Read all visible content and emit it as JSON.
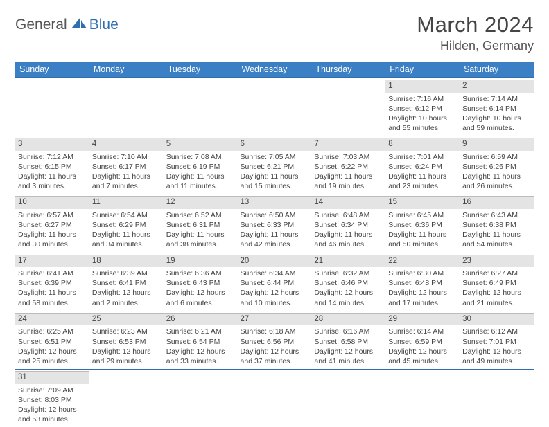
{
  "logo": {
    "part1": "General",
    "part2": "Blue"
  },
  "title": "March 2024",
  "location": "Hilden, Germany",
  "colors": {
    "header_bg": "#3b7fc4",
    "header_border": "#2f6fb0",
    "daynum_bg": "#e4e4e4",
    "text": "#444444",
    "accent": "#2f6fb0"
  },
  "weekdays": [
    "Sunday",
    "Monday",
    "Tuesday",
    "Wednesday",
    "Thursday",
    "Friday",
    "Saturday"
  ],
  "weeks": [
    [
      null,
      null,
      null,
      null,
      null,
      {
        "n": "1",
        "sr": "Sunrise: 7:16 AM",
        "ss": "Sunset: 6:12 PM",
        "d1": "Daylight: 10 hours",
        "d2": "and 55 minutes."
      },
      {
        "n": "2",
        "sr": "Sunrise: 7:14 AM",
        "ss": "Sunset: 6:14 PM",
        "d1": "Daylight: 10 hours",
        "d2": "and 59 minutes."
      }
    ],
    [
      {
        "n": "3",
        "sr": "Sunrise: 7:12 AM",
        "ss": "Sunset: 6:15 PM",
        "d1": "Daylight: 11 hours",
        "d2": "and 3 minutes."
      },
      {
        "n": "4",
        "sr": "Sunrise: 7:10 AM",
        "ss": "Sunset: 6:17 PM",
        "d1": "Daylight: 11 hours",
        "d2": "and 7 minutes."
      },
      {
        "n": "5",
        "sr": "Sunrise: 7:08 AM",
        "ss": "Sunset: 6:19 PM",
        "d1": "Daylight: 11 hours",
        "d2": "and 11 minutes."
      },
      {
        "n": "6",
        "sr": "Sunrise: 7:05 AM",
        "ss": "Sunset: 6:21 PM",
        "d1": "Daylight: 11 hours",
        "d2": "and 15 minutes."
      },
      {
        "n": "7",
        "sr": "Sunrise: 7:03 AM",
        "ss": "Sunset: 6:22 PM",
        "d1": "Daylight: 11 hours",
        "d2": "and 19 minutes."
      },
      {
        "n": "8",
        "sr": "Sunrise: 7:01 AM",
        "ss": "Sunset: 6:24 PM",
        "d1": "Daylight: 11 hours",
        "d2": "and 23 minutes."
      },
      {
        "n": "9",
        "sr": "Sunrise: 6:59 AM",
        "ss": "Sunset: 6:26 PM",
        "d1": "Daylight: 11 hours",
        "d2": "and 26 minutes."
      }
    ],
    [
      {
        "n": "10",
        "sr": "Sunrise: 6:57 AM",
        "ss": "Sunset: 6:27 PM",
        "d1": "Daylight: 11 hours",
        "d2": "and 30 minutes."
      },
      {
        "n": "11",
        "sr": "Sunrise: 6:54 AM",
        "ss": "Sunset: 6:29 PM",
        "d1": "Daylight: 11 hours",
        "d2": "and 34 minutes."
      },
      {
        "n": "12",
        "sr": "Sunrise: 6:52 AM",
        "ss": "Sunset: 6:31 PM",
        "d1": "Daylight: 11 hours",
        "d2": "and 38 minutes."
      },
      {
        "n": "13",
        "sr": "Sunrise: 6:50 AM",
        "ss": "Sunset: 6:33 PM",
        "d1": "Daylight: 11 hours",
        "d2": "and 42 minutes."
      },
      {
        "n": "14",
        "sr": "Sunrise: 6:48 AM",
        "ss": "Sunset: 6:34 PM",
        "d1": "Daylight: 11 hours",
        "d2": "and 46 minutes."
      },
      {
        "n": "15",
        "sr": "Sunrise: 6:45 AM",
        "ss": "Sunset: 6:36 PM",
        "d1": "Daylight: 11 hours",
        "d2": "and 50 minutes."
      },
      {
        "n": "16",
        "sr": "Sunrise: 6:43 AM",
        "ss": "Sunset: 6:38 PM",
        "d1": "Daylight: 11 hours",
        "d2": "and 54 minutes."
      }
    ],
    [
      {
        "n": "17",
        "sr": "Sunrise: 6:41 AM",
        "ss": "Sunset: 6:39 PM",
        "d1": "Daylight: 11 hours",
        "d2": "and 58 minutes."
      },
      {
        "n": "18",
        "sr": "Sunrise: 6:39 AM",
        "ss": "Sunset: 6:41 PM",
        "d1": "Daylight: 12 hours",
        "d2": "and 2 minutes."
      },
      {
        "n": "19",
        "sr": "Sunrise: 6:36 AM",
        "ss": "Sunset: 6:43 PM",
        "d1": "Daylight: 12 hours",
        "d2": "and 6 minutes."
      },
      {
        "n": "20",
        "sr": "Sunrise: 6:34 AM",
        "ss": "Sunset: 6:44 PM",
        "d1": "Daylight: 12 hours",
        "d2": "and 10 minutes."
      },
      {
        "n": "21",
        "sr": "Sunrise: 6:32 AM",
        "ss": "Sunset: 6:46 PM",
        "d1": "Daylight: 12 hours",
        "d2": "and 14 minutes."
      },
      {
        "n": "22",
        "sr": "Sunrise: 6:30 AM",
        "ss": "Sunset: 6:48 PM",
        "d1": "Daylight: 12 hours",
        "d2": "and 17 minutes."
      },
      {
        "n": "23",
        "sr": "Sunrise: 6:27 AM",
        "ss": "Sunset: 6:49 PM",
        "d1": "Daylight: 12 hours",
        "d2": "and 21 minutes."
      }
    ],
    [
      {
        "n": "24",
        "sr": "Sunrise: 6:25 AM",
        "ss": "Sunset: 6:51 PM",
        "d1": "Daylight: 12 hours",
        "d2": "and 25 minutes."
      },
      {
        "n": "25",
        "sr": "Sunrise: 6:23 AM",
        "ss": "Sunset: 6:53 PM",
        "d1": "Daylight: 12 hours",
        "d2": "and 29 minutes."
      },
      {
        "n": "26",
        "sr": "Sunrise: 6:21 AM",
        "ss": "Sunset: 6:54 PM",
        "d1": "Daylight: 12 hours",
        "d2": "and 33 minutes."
      },
      {
        "n": "27",
        "sr": "Sunrise: 6:18 AM",
        "ss": "Sunset: 6:56 PM",
        "d1": "Daylight: 12 hours",
        "d2": "and 37 minutes."
      },
      {
        "n": "28",
        "sr": "Sunrise: 6:16 AM",
        "ss": "Sunset: 6:58 PM",
        "d1": "Daylight: 12 hours",
        "d2": "and 41 minutes."
      },
      {
        "n": "29",
        "sr": "Sunrise: 6:14 AM",
        "ss": "Sunset: 6:59 PM",
        "d1": "Daylight: 12 hours",
        "d2": "and 45 minutes."
      },
      {
        "n": "30",
        "sr": "Sunrise: 6:12 AM",
        "ss": "Sunset: 7:01 PM",
        "d1": "Daylight: 12 hours",
        "d2": "and 49 minutes."
      }
    ],
    [
      {
        "n": "31",
        "sr": "Sunrise: 7:09 AM",
        "ss": "Sunset: 8:03 PM",
        "d1": "Daylight: 12 hours",
        "d2": "and 53 minutes."
      },
      null,
      null,
      null,
      null,
      null,
      null
    ]
  ]
}
